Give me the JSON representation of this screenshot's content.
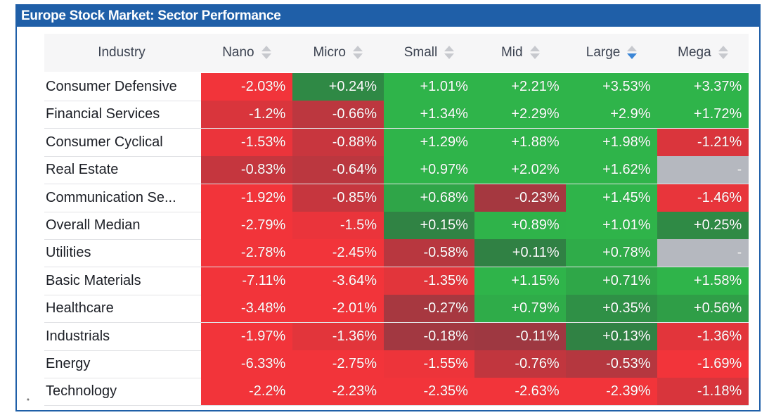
{
  "chart_data": {
    "type": "heatmap",
    "title": "Europe Stock Market: Sector Performance",
    "row_header": "Industry",
    "columns": [
      "Nano",
      "Micro",
      "Small",
      "Mid",
      "Large",
      "Mega"
    ],
    "sorted_column": "Large",
    "sort_direction": "descending",
    "rows": [
      {
        "industry": "Consumer Defensive",
        "values": [
          "-2.03%",
          "+0.24%",
          "+1.01%",
          "+2.21%",
          "+3.53%",
          "+3.37%"
        ]
      },
      {
        "industry": "Financial Services",
        "values": [
          "-1.2%",
          "-0.66%",
          "+1.34%",
          "+2.29%",
          "+2.9%",
          "+1.72%"
        ]
      },
      {
        "industry": "Consumer Cyclical",
        "values": [
          "-1.53%",
          "-0.88%",
          "+1.29%",
          "+1.88%",
          "+1.98%",
          "-1.21%"
        ]
      },
      {
        "industry": "Real Estate",
        "values": [
          "-0.83%",
          "-0.64%",
          "+0.97%",
          "+2.02%",
          "+1.62%",
          "-"
        ]
      },
      {
        "industry": "Communication Se...",
        "values": [
          "-1.92%",
          "-0.85%",
          "+0.68%",
          "-0.23%",
          "+1.45%",
          "-1.46%"
        ]
      },
      {
        "industry": "Overall Median",
        "values": [
          "-2.79%",
          "-1.5%",
          "+0.15%",
          "+0.89%",
          "+1.01%",
          "+0.25%"
        ]
      },
      {
        "industry": "Utilities",
        "values": [
          "-2.78%",
          "-2.45%",
          "-0.58%",
          "+0.11%",
          "+0.78%",
          "-"
        ]
      },
      {
        "industry": "Basic Materials",
        "values": [
          "-7.11%",
          "-3.64%",
          "-1.35%",
          "+1.15%",
          "+0.71%",
          "+1.58%"
        ]
      },
      {
        "industry": "Healthcare",
        "values": [
          "-3.48%",
          "-2.01%",
          "-0.27%",
          "+0.79%",
          "+0.35%",
          "+0.56%"
        ]
      },
      {
        "industry": "Industrials",
        "values": [
          "-1.97%",
          "-1.36%",
          "-0.18%",
          "-0.11%",
          "+0.13%",
          "-1.36%"
        ]
      },
      {
        "industry": "Energy",
        "values": [
          "-6.33%",
          "-2.75%",
          "-1.55%",
          "-0.76%",
          "-0.53%",
          "-1.69%"
        ]
      },
      {
        "industry": "Technology",
        "values": [
          "-2.2%",
          "-2.23%",
          "-2.35%",
          "-2.63%",
          "-2.39%",
          "-1.18%"
        ]
      }
    ],
    "colors": {
      "title_bar": "#1f5fa8",
      "positive": "#2fb44a",
      "negative": "#f2343a",
      "neutral": "#4a4a4a",
      "missing": "#b5b8bf"
    }
  },
  "footnote": "*"
}
